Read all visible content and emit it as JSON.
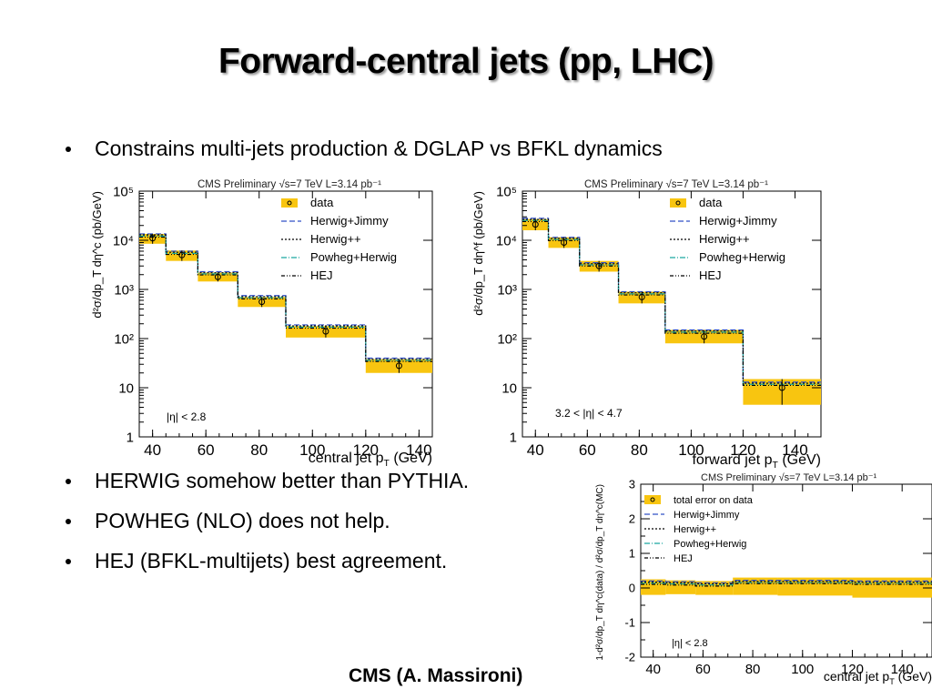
{
  "slide": {
    "title": "Forward-central jets (pp, LHC)",
    "bullets": [
      "Constrains multi-jets production & DGLAP vs BFKL dynamics",
      "HERWIG somehow better than PYTHIA.",
      "POWHEG (NLO) does not help.",
      "HEJ (BFKL-multijets) best agreement."
    ],
    "credit": "CMS (A. Massironi)"
  },
  "legend_entries": [
    "data",
    "Herwig+Jimmy",
    "Herwig++",
    "Powheg+Herwig",
    "HEJ"
  ],
  "ratio_legend_entries": [
    "total error on data",
    "Herwig+Jimmy",
    "Herwig++",
    "Powheg+Herwig",
    "HEJ"
  ],
  "colors": {
    "data_band": "#f8c510",
    "herwig_jimmy": "#3050c8",
    "herwig_pp": "#000000",
    "powheg": "#1aa8a0",
    "hej": "#000000"
  },
  "chart_data": [
    {
      "type": "bar",
      "header": "CMS Preliminary √s=7 TeV L=3.14 pb⁻¹",
      "xlabel": "central jet p",
      "xlabel_sub": "T",
      "xlabel_unit": "(GeV)",
      "ylabel": "d²σ/dp_T dη^c (pb/GeV)",
      "ylog": true,
      "xlim": [
        35,
        145
      ],
      "ylim": [
        1,
        100000
      ],
      "xticks": [
        "40",
        "60",
        "80",
        "100",
        "120",
        "140"
      ],
      "yticks": [
        "1",
        "10",
        "10²",
        "10³",
        "10⁴",
        "10⁵"
      ],
      "annotation": "|η| < 2.8",
      "bins": [
        [
          35,
          45
        ],
        [
          45,
          57
        ],
        [
          57,
          72
        ],
        [
          72,
          90
        ],
        [
          90,
          120
        ],
        [
          120,
          150
        ]
      ],
      "data": [
        11000,
        5000,
        1800,
        560,
        140,
        28
      ],
      "band_low": [
        8500,
        3800,
        1450,
        440,
        105,
        20
      ],
      "band_high": [
        13500,
        6200,
        2200,
        700,
        180,
        38
      ],
      "mc": [
        13500,
        6000,
        2300,
        750,
        190,
        40
      ]
    },
    {
      "type": "bar",
      "header": "CMS Preliminary √s=7 TeV L=3.14 pb⁻¹",
      "xlabel": "forward jet p",
      "xlabel_sub": "T",
      "xlabel_unit": "(GeV)",
      "ylabel": "d²σ/dp_T dη^f (pb/GeV)",
      "ylog": true,
      "xlim": [
        35,
        150
      ],
      "ylim": [
        1,
        100000
      ],
      "xticks": [
        "40",
        "60",
        "80",
        "100",
        "120",
        "140"
      ],
      "yticks": [
        "1",
        "10",
        "10²",
        "10³",
        "10⁴",
        "10⁵"
      ],
      "annotation": "3.2 < |η| < 4.7",
      "bins": [
        [
          35,
          45
        ],
        [
          45,
          57
        ],
        [
          57,
          72
        ],
        [
          72,
          90
        ],
        [
          90,
          120
        ],
        [
          120,
          150
        ]
      ],
      "data": [
        21000,
        9000,
        3000,
        700,
        110,
        10
      ],
      "band_low": [
        16000,
        7000,
        2300,
        520,
        80,
        4.5
      ],
      "band_high": [
        27000,
        11500,
        3800,
        900,
        150,
        15
      ],
      "mc": [
        28000,
        11500,
        3500,
        900,
        150,
        13
      ]
    },
    {
      "type": "bar",
      "header": "CMS Preliminary √s=7 TeV L=3.14 pb⁻¹",
      "xlabel": "central jet p",
      "xlabel_sub": "T",
      "xlabel_unit": "(GeV)",
      "ylabel": "1-d²σ/dp_T dη^c(data) / d²σ/dp_T dη^c(MC)",
      "xlim": [
        35,
        152
      ],
      "ylim": [
        -2,
        3
      ],
      "xticks": [
        "40",
        "60",
        "80",
        "100",
        "120",
        "140"
      ],
      "yticks": [
        "-2",
        "-1",
        "0",
        "1",
        "2",
        "3"
      ],
      "annotation": "|η| < 2.8",
      "bins": [
        [
          35,
          45
        ],
        [
          45,
          57
        ],
        [
          57,
          72
        ],
        [
          72,
          90
        ],
        [
          90,
          120
        ],
        [
          120,
          152
        ]
      ],
      "band_low": [
        -0.2,
        -0.18,
        -0.2,
        -0.2,
        -0.22,
        -0.28
      ],
      "band_high": [
        0.25,
        0.22,
        0.2,
        0.3,
        0.3,
        0.3
      ],
      "mc": [
        0.2,
        0.18,
        0.15,
        0.22,
        0.22,
        0.2
      ]
    }
  ]
}
